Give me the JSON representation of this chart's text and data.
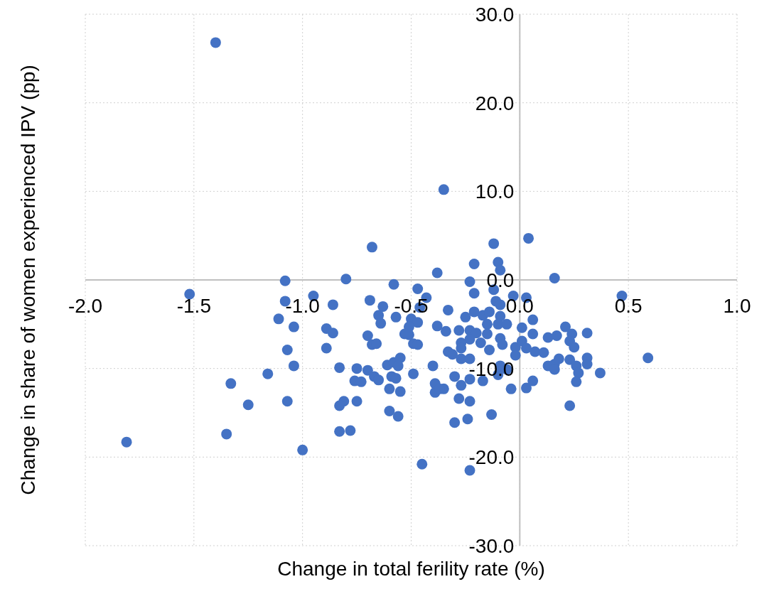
{
  "chart_data": {
    "type": "scatter",
    "xlabel": "Change in total ferility rate (%)",
    "ylabel": "Change in share of women experienced IPV (pp)",
    "xlim": [
      -2,
      1
    ],
    "ylim": [
      -30,
      30
    ],
    "xticks": [
      {
        "value": -2,
        "label": "-2.0"
      },
      {
        "value": -1.5,
        "label": "-1.5"
      },
      {
        "value": -1,
        "label": "-1.0"
      },
      {
        "value": -0.5,
        "label": "-0.5"
      },
      {
        "value": 0,
        "label": "0.0"
      },
      {
        "value": 0.5,
        "label": "0.5"
      },
      {
        "value": 1,
        "label": "1.0"
      }
    ],
    "yticks": [
      {
        "value": -30,
        "label": "-30.0"
      },
      {
        "value": -20,
        "label": "-20.0"
      },
      {
        "value": -10,
        "label": "-10.0"
      },
      {
        "value": 0,
        "label": "0.0"
      },
      {
        "value": 10,
        "label": "10.0"
      },
      {
        "value": 20,
        "label": "20.0"
      },
      {
        "value": 30,
        "label": "30.0"
      }
    ],
    "grid": true,
    "marker": "circle",
    "series": [
      {
        "color": "#4472c4",
        "x": [
          -1.4,
          -0.35,
          -0.68,
          -0.12,
          0.04,
          -0.1,
          -0.09,
          -0.21,
          -0.38,
          0.16,
          -0.8,
          -1.08,
          -1.52,
          0.47,
          -0.58,
          -1.08,
          -0.95,
          -0.86,
          -1.11,
          -1.04,
          -1.07,
          -1.04,
          -1.16,
          -1.33,
          -1.07,
          -1.25,
          -1.35,
          -1.81,
          -1.0,
          -0.45,
          -0.23,
          -0.69,
          -0.63,
          -0.65,
          -0.64,
          -0.47,
          -0.43,
          -0.46,
          -0.57,
          -0.5,
          -0.47,
          -0.51,
          -0.53,
          -0.51,
          -0.49,
          -0.47,
          -0.33,
          -0.38,
          -0.34,
          -0.33,
          -0.89,
          -0.86,
          -0.89,
          -0.7,
          -0.68,
          -0.66,
          -0.83,
          -0.75,
          -0.7,
          -0.76,
          -0.73,
          -0.67,
          -0.65,
          -0.61,
          -0.58,
          -0.55,
          -0.56,
          -0.59,
          -0.57,
          -0.6,
          -0.55,
          -0.49,
          -0.4,
          -0.39,
          -0.39,
          -0.35,
          -0.81,
          -0.83,
          -0.75,
          -0.6,
          -0.56,
          -0.83,
          -0.78,
          -0.23,
          -0.21,
          -0.12,
          -0.03,
          0.03,
          -0.11,
          -0.09,
          -0.21,
          -0.25,
          -0.17,
          -0.14,
          -0.09,
          -0.1,
          -0.06,
          0.01,
          0.06,
          0.06,
          -0.28,
          -0.23,
          -0.2,
          -0.15,
          -0.15,
          -0.23,
          -0.27,
          -0.18,
          -0.09,
          -0.08,
          -0.14,
          -0.27,
          -0.02,
          0.01,
          0.03,
          -0.02,
          0.07,
          0.11,
          -0.31,
          -0.27,
          -0.23,
          0.13,
          0.17,
          0.21,
          0.24,
          0.23,
          0.25,
          0.31,
          0.13,
          0.16,
          0.18,
          0.16,
          0.23,
          0.26,
          0.27,
          0.31,
          0.31,
          0.37,
          0.26,
          0.23,
          -0.09,
          -0.06,
          -0.1,
          -0.3,
          -0.23,
          -0.17,
          -0.27,
          -0.37,
          -0.04,
          0.03,
          0.06,
          -0.28,
          -0.23,
          -0.13,
          -0.3,
          -0.24,
          0.59
        ],
        "values": [
          26.8,
          10.2,
          3.7,
          4.1,
          4.7,
          2.0,
          1.1,
          1.8,
          0.8,
          0.2,
          0.1,
          -0.1,
          -1.6,
          -1.8,
          -0.5,
          -2.4,
          -1.8,
          -2.8,
          -4.4,
          -5.3,
          -7.9,
          -9.7,
          -10.6,
          -11.7,
          -13.7,
          -14.1,
          -17.4,
          -18.3,
          -19.2,
          -20.8,
          -21.5,
          -2.3,
          -3.0,
          -4.0,
          -4.9,
          -1.0,
          -2.0,
          -3.1,
          -4.2,
          -4.4,
          -4.8,
          -5.3,
          -6.1,
          -6.2,
          -7.2,
          -7.3,
          -3.4,
          -5.2,
          -5.8,
          -8.1,
          -5.5,
          -6.0,
          -7.7,
          -6.3,
          -7.3,
          -7.2,
          -9.9,
          -10.0,
          -10.2,
          -11.4,
          -11.5,
          -10.9,
          -11.3,
          -9.6,
          -9.3,
          -8.8,
          -9.7,
          -10.9,
          -11.1,
          -12.3,
          -12.6,
          -10.6,
          -9.7,
          -11.7,
          -12.7,
          -12.3,
          -13.7,
          -14.2,
          -13.7,
          -14.8,
          -15.4,
          -17.1,
          -17.0,
          -0.2,
          -1.5,
          -1.1,
          -1.8,
          -2.0,
          -2.4,
          -2.8,
          -3.6,
          -4.2,
          -4.0,
          -3.6,
          -4.1,
          -5.0,
          -5.0,
          -5.4,
          -4.5,
          -6.1,
          -5.7,
          -5.7,
          -6.0,
          -5.0,
          -6.1,
          -6.7,
          -7.1,
          -7.1,
          -6.6,
          -7.3,
          -7.9,
          -7.7,
          -7.6,
          -6.9,
          -7.7,
          -8.5,
          -8.1,
          -8.2,
          -8.4,
          -8.9,
          -8.9,
          -6.5,
          -6.3,
          -5.3,
          -6.1,
          -6.9,
          -7.6,
          -6.0,
          -9.7,
          -9.5,
          -8.9,
          -10.1,
          -9.0,
          -9.7,
          -10.5,
          -8.8,
          -9.5,
          -10.5,
          -11.5,
          -14.2,
          -9.7,
          -10.1,
          -10.7,
          -10.9,
          -11.2,
          -11.4,
          -11.9,
          -12.3,
          -12.3,
          -12.2,
          -11.4,
          -13.4,
          -13.7,
          -15.2,
          -16.1,
          -15.7,
          -8.8
        ]
      }
    ]
  }
}
